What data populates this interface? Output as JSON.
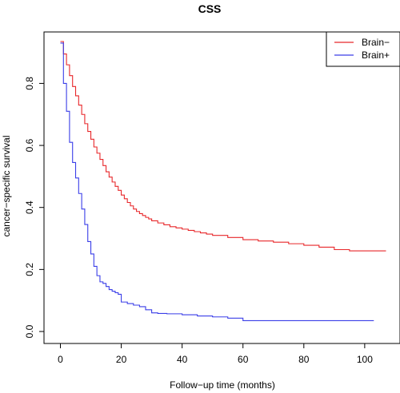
{
  "chart_data": {
    "type": "line",
    "step": true,
    "title": "CSS",
    "xlabel": "Follow−up time (months)",
    "ylabel": "cancer−specific survival",
    "xlim": [
      0,
      107
    ],
    "ylim": [
      0,
      0.935
    ],
    "xticks": [
      0,
      20,
      40,
      60,
      80,
      100
    ],
    "yticks": [
      0.0,
      0.2,
      0.4,
      0.6,
      0.8
    ],
    "xtick_labels": [
      "0",
      "20",
      "40",
      "60",
      "80",
      "100"
    ],
    "ytick_labels": [
      "0.0",
      "0.2",
      "0.4",
      "0.6",
      "0.8"
    ],
    "grid": false,
    "legend_position": "top-right",
    "series": [
      {
        "name": "Brain−",
        "color": "#e8272a",
        "x": [
          0,
          1,
          2,
          3,
          4,
          5,
          6,
          7,
          8,
          9,
          10,
          11,
          12,
          13,
          14,
          15,
          16,
          17,
          18,
          19,
          20,
          21,
          22,
          23,
          24,
          25,
          26,
          27,
          28,
          29,
          30,
          32,
          34,
          36,
          38,
          40,
          42,
          44,
          46,
          48,
          50,
          55,
          60,
          65,
          70,
          75,
          80,
          85,
          90,
          95,
          100,
          107
        ],
        "y": [
          0.935,
          0.895,
          0.86,
          0.825,
          0.79,
          0.76,
          0.73,
          0.7,
          0.67,
          0.645,
          0.62,
          0.595,
          0.575,
          0.555,
          0.535,
          0.515,
          0.498,
          0.482,
          0.468,
          0.455,
          0.44,
          0.428,
          0.416,
          0.405,
          0.395,
          0.387,
          0.38,
          0.374,
          0.368,
          0.363,
          0.357,
          0.35,
          0.344,
          0.338,
          0.334,
          0.33,
          0.326,
          0.322,
          0.318,
          0.314,
          0.31,
          0.303,
          0.296,
          0.292,
          0.288,
          0.283,
          0.278,
          0.272,
          0.264,
          0.26,
          0.26,
          0.26
        ]
      },
      {
        "name": "Brain+",
        "color": "#3a3ee8",
        "x": [
          0,
          1,
          2,
          3,
          4,
          5,
          6,
          7,
          8,
          9,
          10,
          11,
          12,
          13,
          14,
          15,
          16,
          17,
          18,
          19,
          20,
          22,
          24,
          26,
          28,
          30,
          32,
          35,
          40,
          45,
          50,
          55,
          60,
          65,
          70,
          80,
          90,
          100,
          103
        ],
        "y": [
          0.93,
          0.8,
          0.71,
          0.61,
          0.545,
          0.495,
          0.445,
          0.395,
          0.345,
          0.29,
          0.25,
          0.21,
          0.18,
          0.16,
          0.155,
          0.145,
          0.135,
          0.13,
          0.125,
          0.12,
          0.095,
          0.09,
          0.085,
          0.08,
          0.07,
          0.06,
          0.058,
          0.057,
          0.054,
          0.05,
          0.047,
          0.043,
          0.035,
          0.035,
          0.035,
          0.035,
          0.035,
          0.035,
          0.035
        ]
      }
    ]
  }
}
